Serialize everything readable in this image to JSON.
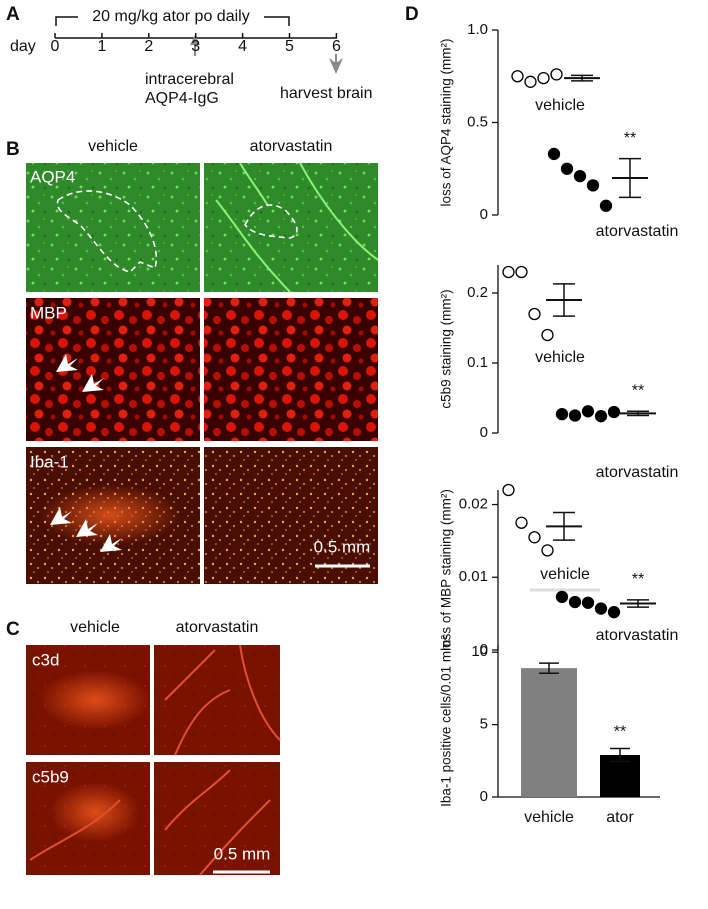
{
  "panel_a": {
    "letter": "A",
    "regimen": "20 mg/kg ator po daily",
    "day_label": "day",
    "days": [
      0,
      1,
      2,
      3,
      4,
      5,
      6
    ],
    "injection": [
      "intracerebral",
      "AQP4-IgG"
    ],
    "harvest": "harvest brain"
  },
  "panel_b": {
    "letter": "B",
    "columns": [
      "vehicle",
      "atorvastatin"
    ],
    "rows": [
      "AQP4",
      "MBP",
      "Iba-1"
    ],
    "scale_bar": "0.5 mm"
  },
  "panel_c": {
    "letter": "C",
    "columns": [
      "vehicle",
      "atorvastatin"
    ],
    "rows": [
      "c3d",
      "c5b9"
    ],
    "scale_bar": "0.5 mm"
  },
  "panel_d": {
    "letter": "D"
  },
  "chart_data": [
    {
      "type": "strip",
      "y_label": "loss of AQP4 staining (mm²)",
      "ylim": [
        0,
        1
      ],
      "yticks": [
        0,
        0.5,
        {
          "value": 1,
          "label": "1.0"
        }
      ],
      "series": [
        {
          "name": "vehicle",
          "marker": "open",
          "values": [
            0.75,
            0.72,
            0.74,
            0.76
          ],
          "mean": 0.74,
          "error": 0.015
        },
        {
          "name": "atorvastatin",
          "marker": "filled",
          "values": [
            0.33,
            0.25,
            0.21,
            0.16,
            0.05
          ],
          "mean": 0.2,
          "error": 0.105,
          "significance": "**"
        }
      ]
    },
    {
      "type": "strip",
      "y_label": "c5b9 staining (mm²)",
      "ylim": [
        0,
        0.24
      ],
      "yticks": [
        0,
        0.1,
        0.2
      ],
      "series": [
        {
          "name": "vehicle",
          "marker": "open",
          "values": [
            0.23,
            0.23,
            0.17,
            0.14
          ],
          "mean": 0.19,
          "error": 0.023
        },
        {
          "name": "atorvastatin",
          "marker": "filled",
          "values": [
            0.027,
            0.025,
            0.031,
            0.024,
            0.03
          ],
          "mean": 0.028,
          "error": 0.003,
          "significance": "**"
        }
      ]
    },
    {
      "type": "strip",
      "y_label": "loss of MBP staining (mm²)",
      "ylim": [
        0,
        0.022
      ],
      "yticks": [
        0,
        0.01,
        0.02
      ],
      "series": [
        {
          "name": "vehicle",
          "marker": "open",
          "values": [
            0.022,
            0.0175,
            0.0155,
            0.0137
          ],
          "mean": 0.017,
          "error": 0.0019
        },
        {
          "name": "atorvastatin",
          "marker": "filled",
          "values": [
            0.0073,
            0.0066,
            0.0065,
            0.0057,
            0.0052
          ],
          "mean": 0.0064,
          "error": 0.0005,
          "significance": "**"
        }
      ]
    },
    {
      "type": "bar",
      "y_label": "Iba-1 positive cells/0.01 mm²",
      "ylim": [
        0,
        10.5
      ],
      "yticks": [
        0,
        5,
        10
      ],
      "categories": [
        "vehicle",
        "ator"
      ],
      "values": [
        8.9,
        2.9
      ],
      "errors": [
        0.35,
        0.45
      ],
      "colors": [
        "#808080",
        "#000000"
      ],
      "significance": [
        null,
        "**"
      ]
    }
  ]
}
